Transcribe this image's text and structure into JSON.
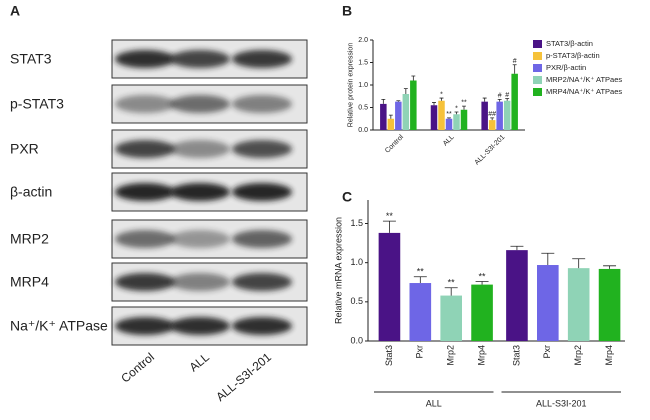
{
  "figure_labels": [
    "A",
    "B",
    "C"
  ],
  "blot": {
    "rows": [
      "STAT3",
      "p-STAT3",
      "PXR",
      "β-actin",
      "MRP2",
      "MRP4",
      "Na⁺/K⁺ ATPase"
    ],
    "columns": [
      "Control",
      "ALL",
      "ALL-S3I-201"
    ]
  },
  "chart_data": [
    {
      "type": "grouped_bar",
      "ylabel": "Relative protein expression",
      "categories": [
        "Control",
        "ALL",
        "ALL-S3I-201"
      ],
      "series": [
        {
          "name": "STAT3/β-actin",
          "color": "#4a1386",
          "values": [
            0.58,
            0.55,
            0.63
          ],
          "errors": [
            0.1,
            0.06,
            0.08
          ],
          "significance": [
            null,
            null,
            null
          ]
        },
        {
          "name": "p-STAT3/β-actin",
          "color": "#f6c23a",
          "values": [
            0.25,
            0.65,
            0.22
          ],
          "errors": [
            0.08,
            0.06,
            0.05
          ],
          "significance": [
            null,
            "*",
            "##"
          ]
        },
        {
          "name": "PXR/β-actin",
          "color": "#6e66e6",
          "values": [
            0.63,
            0.25,
            0.63
          ],
          "errors": [
            0.02,
            0.02,
            0.05
          ],
          "significance": [
            null,
            "**",
            "#"
          ]
        },
        {
          "name": "MRP2/NA⁺/K⁺ ATPaes",
          "color": "#8fd3b6",
          "values": [
            0.8,
            0.35,
            0.65
          ],
          "errors": [
            0.12,
            0.05,
            0.05
          ],
          "significance": [
            null,
            "*",
            "#"
          ]
        },
        {
          "name": "MRP4/NA⁺/K⁺ ATPaes",
          "color": "#21b21f",
          "values": [
            1.1,
            0.45,
            1.25
          ],
          "errors": [
            0.1,
            0.08,
            0.2
          ],
          "significance": [
            null,
            "**",
            "#"
          ]
        }
      ],
      "ylim": [
        0,
        2
      ],
      "yticks": [
        {
          "value": 0,
          "label": "0.0"
        },
        0.5,
        {
          "value": 1,
          "label": "1.0"
        },
        1.5,
        {
          "value": 2,
          "label": "2.0"
        }
      ],
      "legend": "right"
    },
    {
      "type": "group_bar",
      "ylabel": "Relative mRNA expression",
      "colors": [
        "#4a1386",
        "#6e66e6",
        "#8fd3b6",
        "#21b21f"
      ],
      "groups": [
        {
          "name": "ALL",
          "categories": [
            "Stat3",
            "Pxr",
            "Mrp2",
            "Mrp4"
          ],
          "values": [
            1.38,
            0.74,
            0.58,
            0.72
          ],
          "errors": [
            0.15,
            0.08,
            0.1,
            0.04
          ],
          "significance": [
            "**",
            "**",
            "**",
            "**"
          ]
        },
        {
          "name": "ALL-S3I-201",
          "categories": [
            "Stat3",
            "Pxr",
            "Mrp2",
            "Mrp4"
          ],
          "values": [
            1.16,
            0.97,
            0.93,
            0.92
          ],
          "errors": [
            0.05,
            0.15,
            0.12,
            0.04
          ],
          "significance": [
            null,
            null,
            null,
            null
          ]
        }
      ],
      "ylim": [
        0,
        1.8
      ],
      "yticks": [
        {
          "value": 0,
          "label": "0.0"
        },
        0.5,
        {
          "value": 1,
          "label": "1.0"
        },
        1.5
      ]
    }
  ]
}
